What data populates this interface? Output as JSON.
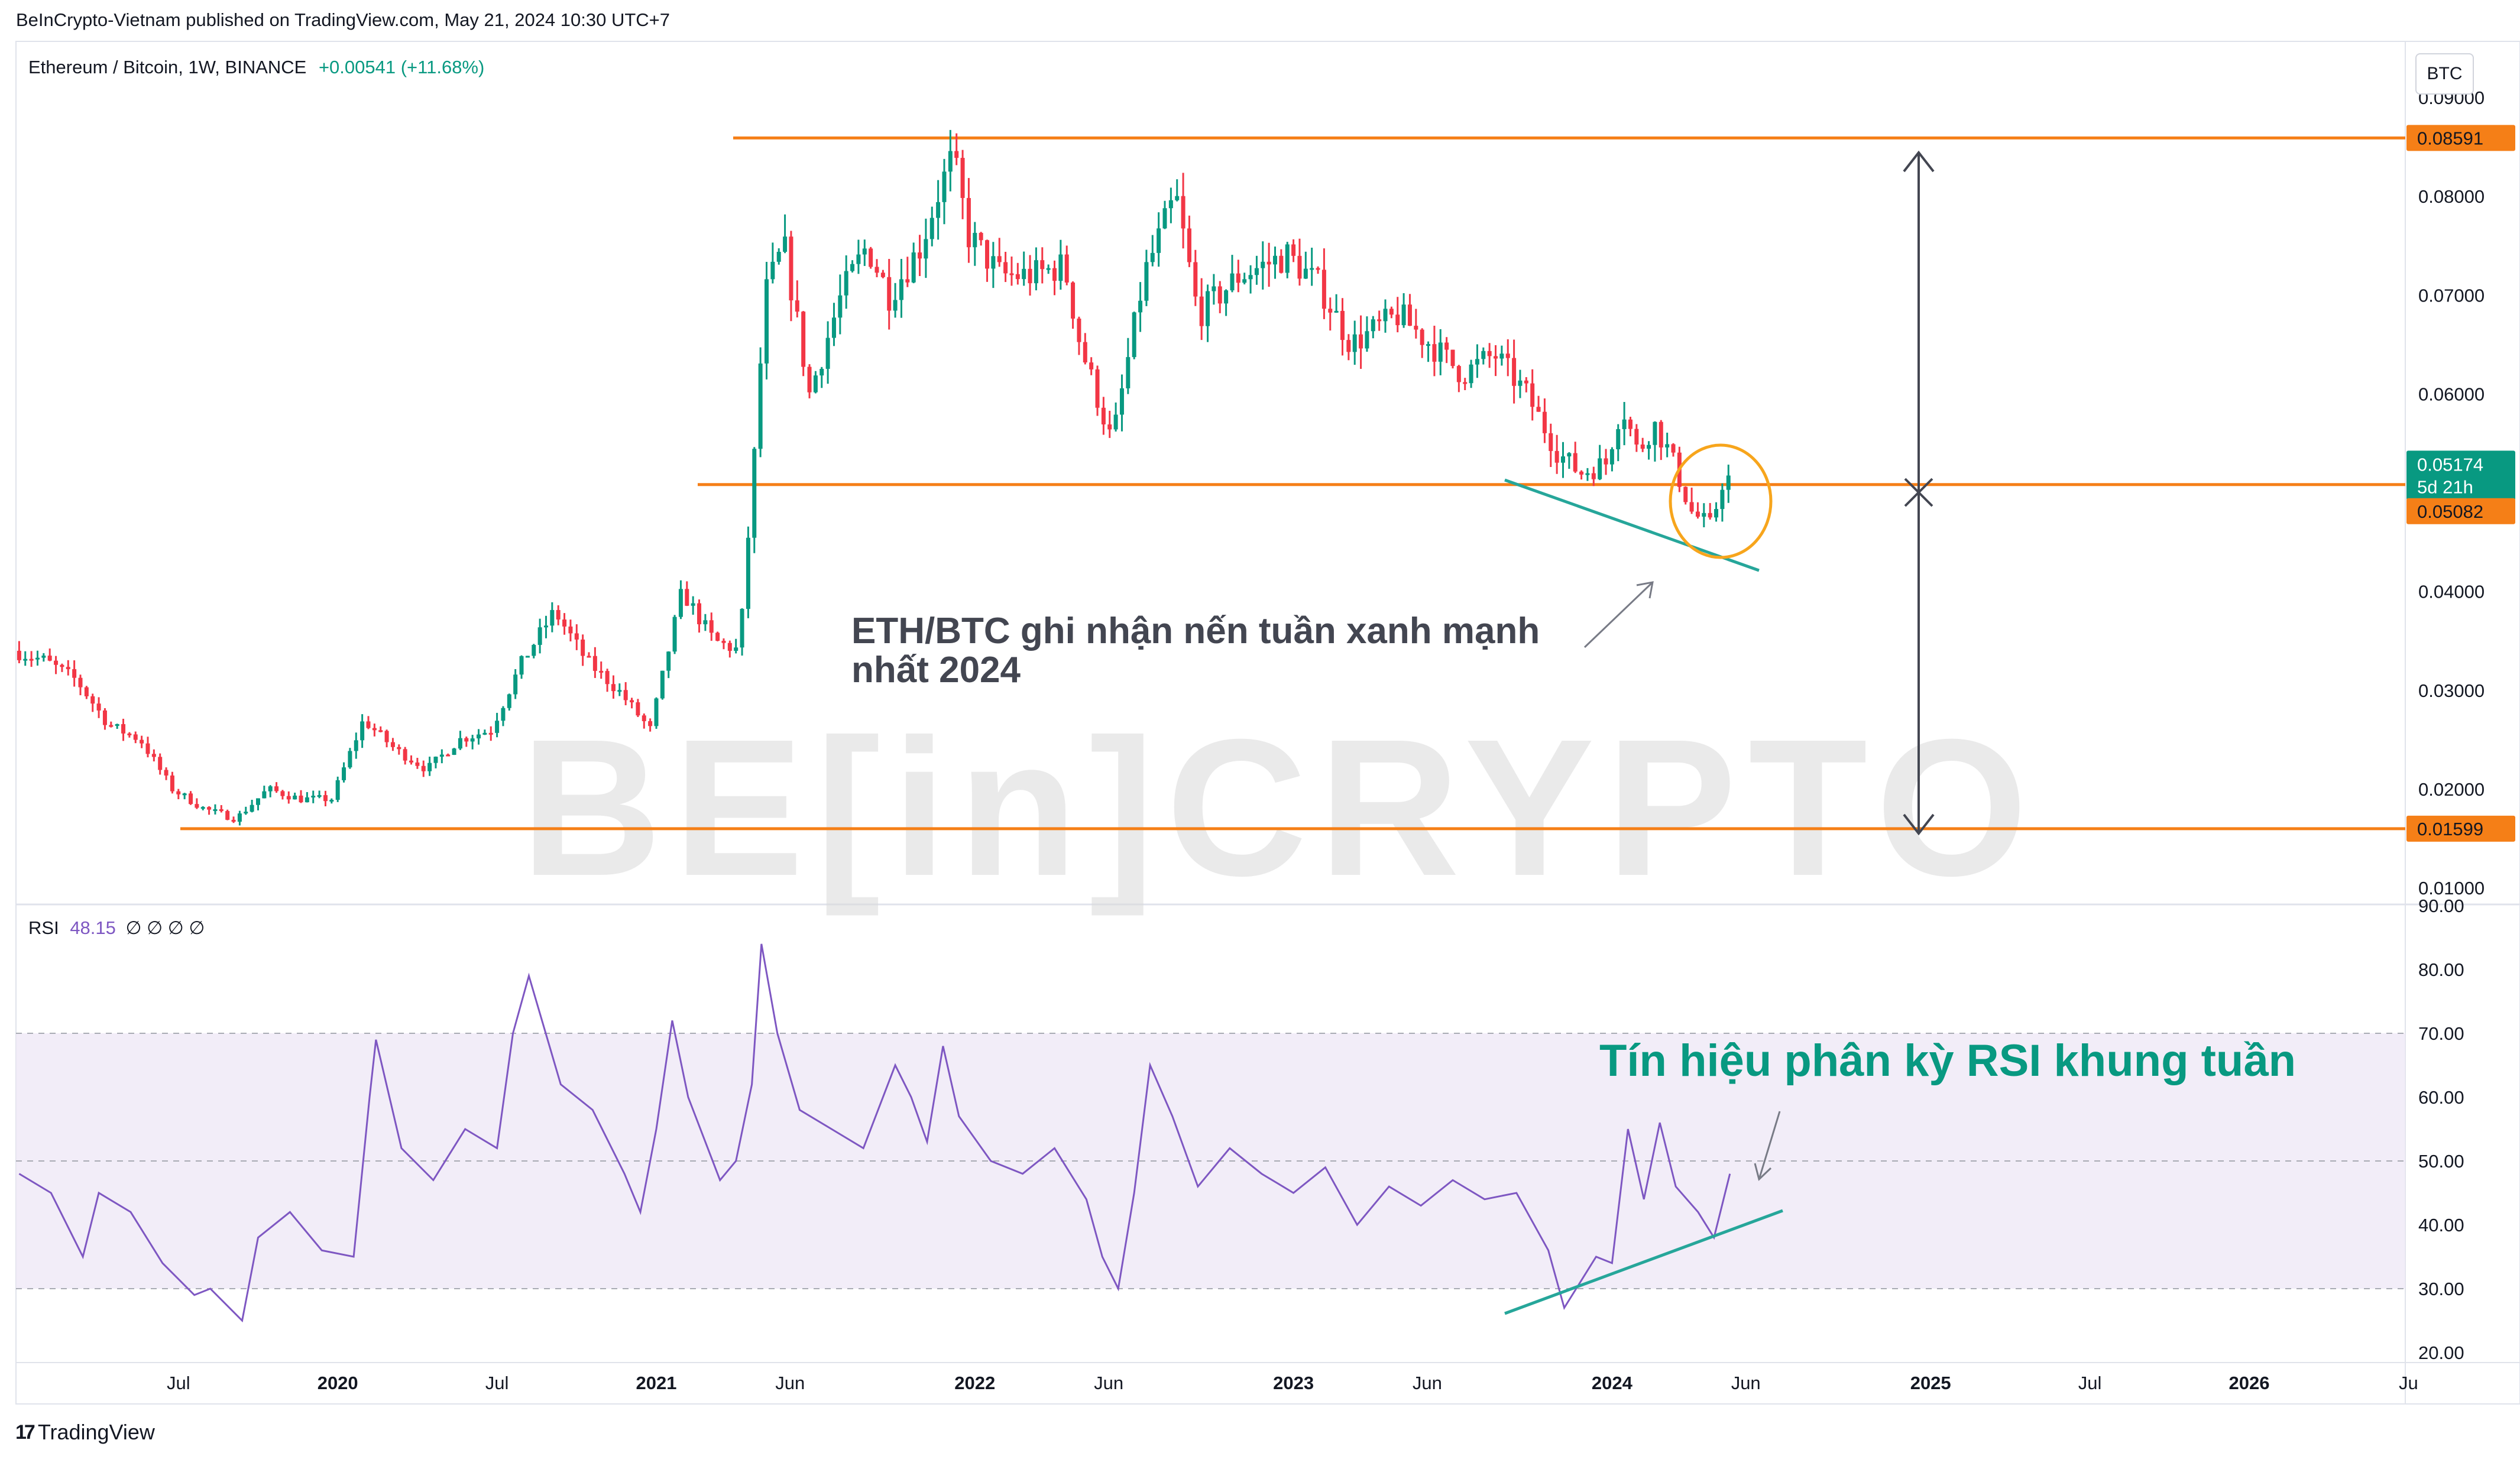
{
  "header": {
    "published": "BeInCrypto-Vietnam published on TradingView.com, May 21, 2024 10:30 UTC+7"
  },
  "legend": {
    "symbol": "Ethereum / Bitcoin, 1W, BINANCE",
    "change": "+0.00541 (+11.68%)"
  },
  "currency_box": "BTC",
  "watermark": "BE[in]CRYPTO",
  "branding": {
    "logo_glyph": "17",
    "name": "TradingView"
  },
  "chart_data": [
    {
      "type": "candlestick",
      "title": "Ethereum / Bitcoin, 1W, BINANCE",
      "ylim": [
        0.01,
        0.09
      ],
      "y_ticks": [
        "0.01000",
        "0.02000",
        "0.03000",
        "0.04000",
        "0.05000",
        "0.06000",
        "0.07000",
        "0.08000",
        "0.09000"
      ],
      "x_ticks": [
        "Jul",
        "2020",
        "Jul",
        "2021",
        "Jun",
        "2022",
        "Jun",
        "2023",
        "Jun",
        "2024",
        "Jun",
        "2025",
        "Jul",
        "2026",
        "Ju"
      ],
      "x_tick_years": [
        2019.5,
        2020.0,
        2020.5,
        2021.0,
        2021.42,
        2022.0,
        2022.42,
        2023.0,
        2023.42,
        2024.0,
        2024.42,
        2025.0,
        2025.5,
        2026.0,
        2026.5
      ],
      "xlim": [
        2018.99,
        2026.49
      ],
      "price_path": [
        [
          2019.0,
          0.034
        ],
        [
          2019.1,
          0.033
        ],
        [
          2019.2,
          0.031
        ],
        [
          2019.3,
          0.0265
        ],
        [
          2019.4,
          0.025
        ],
        [
          2019.5,
          0.02
        ],
        [
          2019.6,
          0.018
        ],
        [
          2019.7,
          0.017
        ],
        [
          2019.8,
          0.02
        ],
        [
          2019.9,
          0.019
        ],
        [
          2020.0,
          0.019
        ],
        [
          2020.1,
          0.027
        ],
        [
          2020.2,
          0.024
        ],
        [
          2020.3,
          0.022
        ],
        [
          2020.4,
          0.025
        ],
        [
          2020.5,
          0.026
        ],
        [
          2020.6,
          0.033
        ],
        [
          2020.7,
          0.038
        ],
        [
          2020.8,
          0.033
        ],
        [
          2020.9,
          0.03
        ],
        [
          2021.0,
          0.026
        ],
        [
          2021.1,
          0.04
        ],
        [
          2021.2,
          0.035
        ],
        [
          2021.28,
          0.034
        ],
        [
          2021.33,
          0.055
        ],
        [
          2021.36,
          0.07
        ],
        [
          2021.42,
          0.075
        ],
        [
          2021.5,
          0.06
        ],
        [
          2021.55,
          0.065
        ],
        [
          2021.6,
          0.07
        ],
        [
          2021.68,
          0.075
        ],
        [
          2021.75,
          0.07
        ],
        [
          2021.85,
          0.075
        ],
        [
          2021.9,
          0.08
        ],
        [
          2021.95,
          0.084
        ],
        [
          2022.0,
          0.076
        ],
        [
          2022.1,
          0.072
        ],
        [
          2022.2,
          0.072
        ],
        [
          2022.3,
          0.073
        ],
        [
          2022.35,
          0.065
        ],
        [
          2022.45,
          0.055
        ],
        [
          2022.55,
          0.072
        ],
        [
          2022.65,
          0.08
        ],
        [
          2022.72,
          0.068
        ],
        [
          2022.85,
          0.072
        ],
        [
          2023.0,
          0.074
        ],
        [
          2023.1,
          0.071
        ],
        [
          2023.2,
          0.065
        ],
        [
          2023.35,
          0.068
        ],
        [
          2023.45,
          0.065
        ],
        [
          2023.55,
          0.062
        ],
        [
          2023.65,
          0.064
        ],
        [
          2023.75,
          0.06
        ],
        [
          2023.85,
          0.054
        ],
        [
          2023.92,
          0.052
        ],
        [
          2024.0,
          0.053
        ],
        [
          2024.05,
          0.059
        ],
        [
          2024.1,
          0.054
        ],
        [
          2024.15,
          0.057
        ],
        [
          2024.2,
          0.054
        ],
        [
          2024.27,
          0.048
        ],
        [
          2024.33,
          0.0465
        ],
        [
          2024.37,
          0.0517
        ]
      ],
      "last_price": "0.05174",
      "countdown": "5d 21h",
      "horizontal_levels": [
        {
          "value": 0.08591,
          "label": "0.08591",
          "color": "#f57f17"
        },
        {
          "value": 0.05082,
          "label": "0.05082",
          "color": "#f57f17"
        },
        {
          "value": 0.01599,
          "label": "0.01599",
          "color": "#f57f17"
        }
      ],
      "annotations": {
        "candle_note": "ETH/BTC ghi nhận nến tuần xanh mạnh nhất 2024"
      },
      "colors": {
        "up": "#089981",
        "down": "#f23645",
        "level": "#f57f17",
        "trend": "#26a69a"
      }
    },
    {
      "type": "line",
      "title": "RSI",
      "legend_value": "48.15",
      "legend_placeholders": "∅ ∅ ∅ ∅",
      "ylim": [
        20,
        90
      ],
      "y_ticks": [
        "20.00",
        "30.00",
        "40.00",
        "50.00",
        "60.00",
        "70.00",
        "80.00",
        "90.00"
      ],
      "bands": {
        "upper": 70,
        "middle": 50,
        "lower": 30
      },
      "series": [
        {
          "values": [
            [
              2019.0,
              48
            ],
            [
              2019.1,
              45
            ],
            [
              2019.2,
              35
            ],
            [
              2019.25,
              45
            ],
            [
              2019.35,
              42
            ],
            [
              2019.45,
              34
            ],
            [
              2019.55,
              29
            ],
            [
              2019.6,
              30
            ],
            [
              2019.7,
              25
            ],
            [
              2019.75,
              38
            ],
            [
              2019.85,
              42
            ],
            [
              2019.95,
              36
            ],
            [
              2020.05,
              35
            ],
            [
              2020.1,
              60
            ],
            [
              2020.12,
              69
            ],
            [
              2020.2,
              52
            ],
            [
              2020.3,
              47
            ],
            [
              2020.4,
              55
            ],
            [
              2020.5,
              52
            ],
            [
              2020.55,
              70
            ],
            [
              2020.6,
              79
            ],
            [
              2020.7,
              62
            ],
            [
              2020.8,
              58
            ],
            [
              2020.9,
              48
            ],
            [
              2020.95,
              42
            ],
            [
              2021.0,
              55
            ],
            [
              2021.05,
              72
            ],
            [
              2021.1,
              60
            ],
            [
              2021.2,
              47
            ],
            [
              2021.25,
              50
            ],
            [
              2021.3,
              62
            ],
            [
              2021.33,
              84
            ],
            [
              2021.38,
              70
            ],
            [
              2021.45,
              58
            ],
            [
              2021.55,
              55
            ],
            [
              2021.65,
              52
            ],
            [
              2021.75,
              65
            ],
            [
              2021.8,
              60
            ],
            [
              2021.85,
              53
            ],
            [
              2021.9,
              68
            ],
            [
              2021.95,
              57
            ],
            [
              2022.05,
              50
            ],
            [
              2022.15,
              48
            ],
            [
              2022.25,
              52
            ],
            [
              2022.35,
              44
            ],
            [
              2022.4,
              35
            ],
            [
              2022.45,
              30
            ],
            [
              2022.5,
              45
            ],
            [
              2022.55,
              65
            ],
            [
              2022.62,
              57
            ],
            [
              2022.7,
              46
            ],
            [
              2022.8,
              52
            ],
            [
              2022.9,
              48
            ],
            [
              2023.0,
              45
            ],
            [
              2023.1,
              49
            ],
            [
              2023.2,
              40
            ],
            [
              2023.3,
              46
            ],
            [
              2023.4,
              43
            ],
            [
              2023.5,
              47
            ],
            [
              2023.6,
              44
            ],
            [
              2023.7,
              45
            ],
            [
              2023.8,
              36
            ],
            [
              2023.85,
              27
            ],
            [
              2023.95,
              35
            ],
            [
              2024.0,
              34
            ],
            [
              2024.05,
              55
            ],
            [
              2024.1,
              44
            ],
            [
              2024.15,
              56
            ],
            [
              2024.2,
              46
            ],
            [
              2024.27,
              42
            ],
            [
              2024.32,
              38
            ],
            [
              2024.35,
              44
            ],
            [
              2024.37,
              48
            ]
          ]
        }
      ],
      "annotations": {
        "divergence_note": "Tín hiệu phân kỳ RSI khung tuần"
      },
      "colors": {
        "line": "#7e57c2",
        "band_fill": "#ede7f6",
        "trend": "#26a69a"
      }
    }
  ]
}
